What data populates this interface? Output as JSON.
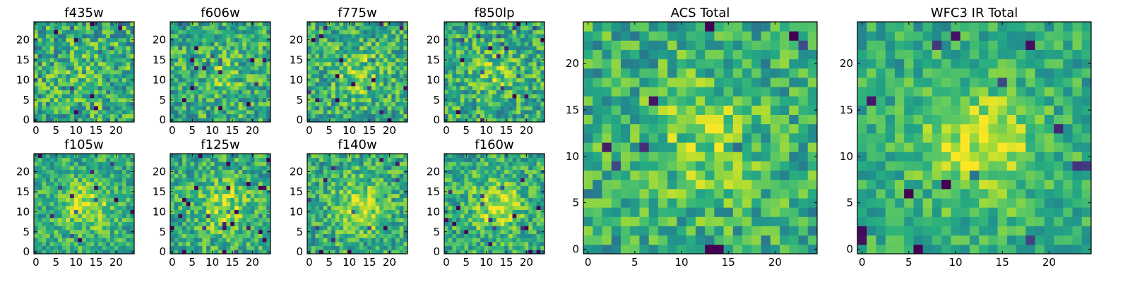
{
  "chart_data": [
    {
      "type": "heatmap",
      "title": "f435w",
      "grid_size": 25,
      "x_ticks": [
        "0",
        "5",
        "10",
        "15",
        "20"
      ],
      "y_ticks": [
        "0",
        "5",
        "10",
        "15",
        "20"
      ],
      "colormap": "viridis",
      "center_strength": 0.15,
      "noise": 0.55,
      "seed": 11
    },
    {
      "type": "heatmap",
      "title": "f606w",
      "grid_size": 25,
      "x_ticks": [
        "0",
        "5",
        "10",
        "15",
        "20"
      ],
      "y_ticks": [
        "0",
        "5",
        "10",
        "15",
        "20"
      ],
      "colormap": "viridis",
      "center_strength": 0.25,
      "noise": 0.5,
      "seed": 23
    },
    {
      "type": "heatmap",
      "title": "f775w",
      "grid_size": 25,
      "x_ticks": [
        "0",
        "5",
        "10",
        "15",
        "20"
      ],
      "y_ticks": [
        "0",
        "5",
        "10",
        "15",
        "20"
      ],
      "colormap": "viridis",
      "center_strength": 0.4,
      "noise": 0.5,
      "seed": 37
    },
    {
      "type": "heatmap",
      "title": "f850lp",
      "grid_size": 25,
      "x_ticks": [
        "0",
        "5",
        "10",
        "15",
        "20"
      ],
      "y_ticks": [
        "0",
        "5",
        "10",
        "15",
        "20"
      ],
      "colormap": "viridis",
      "center_strength": 0.3,
      "noise": 0.5,
      "seed": 41
    },
    {
      "type": "heatmap",
      "title": "f105w",
      "grid_size": 25,
      "x_ticks": [
        "0",
        "5",
        "10",
        "15",
        "20"
      ],
      "y_ticks": [
        "0",
        "5",
        "10",
        "15",
        "20"
      ],
      "colormap": "viridis",
      "center_strength": 0.6,
      "noise": 0.4,
      "seed": 53
    },
    {
      "type": "heatmap",
      "title": "f125w",
      "grid_size": 25,
      "x_ticks": [
        "0",
        "5",
        "10",
        "15",
        "20"
      ],
      "y_ticks": [
        "0",
        "5",
        "10",
        "15",
        "20"
      ],
      "colormap": "viridis",
      "center_strength": 0.55,
      "noise": 0.45,
      "seed": 67
    },
    {
      "type": "heatmap",
      "title": "f140w",
      "grid_size": 25,
      "x_ticks": [
        "0",
        "5",
        "10",
        "15",
        "20"
      ],
      "y_ticks": [
        "0",
        "5",
        "10",
        "15",
        "20"
      ],
      "colormap": "viridis",
      "center_strength": 0.6,
      "noise": 0.45,
      "seed": 79
    },
    {
      "type": "heatmap",
      "title": "f160w",
      "grid_size": 25,
      "x_ticks": [
        "0",
        "5",
        "10",
        "15",
        "20"
      ],
      "y_ticks": [
        "0",
        "5",
        "10",
        "15",
        "20"
      ],
      "colormap": "viridis",
      "center_strength": 0.6,
      "noise": 0.45,
      "seed": 83
    },
    {
      "type": "heatmap",
      "title": "ACS Total",
      "grid_size": 25,
      "x_ticks": [
        "0",
        "5",
        "10",
        "15",
        "20"
      ],
      "y_ticks": [
        "0",
        "5",
        "10",
        "15",
        "20"
      ],
      "colormap": "viridis",
      "center_strength": 0.45,
      "noise": 0.45,
      "seed": 97
    },
    {
      "type": "heatmap",
      "title": "WFC3 IR Total",
      "grid_size": 25,
      "x_ticks": [
        "0",
        "5",
        "10",
        "15",
        "20"
      ],
      "y_ticks": [
        "0",
        "5",
        "10",
        "15",
        "20"
      ],
      "colormap": "viridis",
      "center_strength": 0.7,
      "noise": 0.35,
      "seed": 101
    }
  ]
}
